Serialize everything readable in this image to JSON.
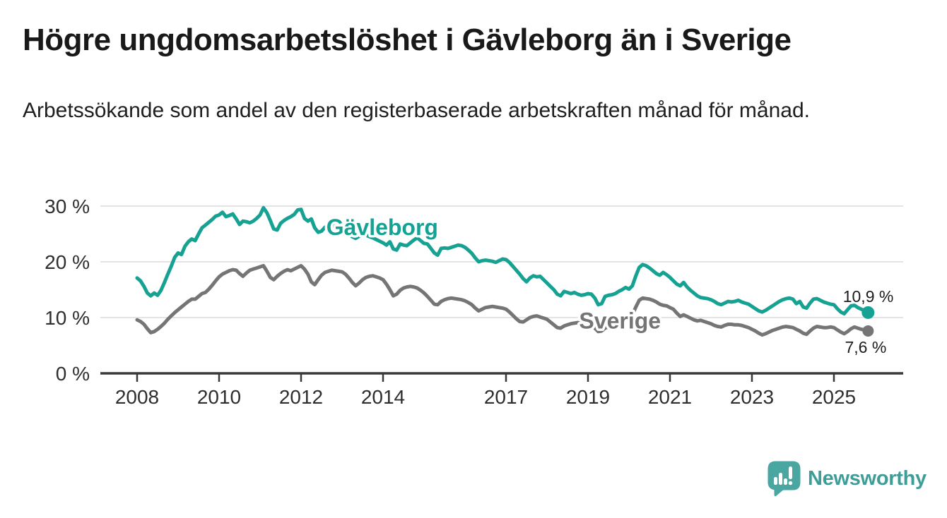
{
  "header": {
    "title": "Högre ungdomsarbetslöshet i Gävleborg än i Sverige",
    "subtitle": "Arbetssökande som andel av den registerbaserade arbetskraften månad för månad."
  },
  "footer": {
    "logo_text": "Newsworthy",
    "logo_bubble_color": "#4aa6a0",
    "logo_text_color": "#3f9d97"
  },
  "chart_data": {
    "type": "line",
    "title": "Högre ungdomsarbetslöshet i Gävleborg än i Sverige",
    "subtitle": "Arbetssökande som andel av den registerbaserade arbetskraften månad för månad.",
    "unit": "%",
    "grid": "horizontal",
    "legend_position": "inline-labels",
    "x_axis": {
      "start_year": 2008,
      "months_per_point": 1,
      "ticks": [
        2008,
        2010,
        2012,
        2014,
        2017,
        2019,
        2021,
        2023,
        2025
      ]
    },
    "y_axis": {
      "ylim": [
        0,
        32
      ],
      "ticks": [
        {
          "value": 0,
          "label": "0 %"
        },
        {
          "value": 10,
          "label": "10 %"
        },
        {
          "value": 20,
          "label": "20 %"
        },
        {
          "value": 30,
          "label": "30 %"
        }
      ]
    },
    "colors": {
      "grid": "#dcdcdc",
      "axis": "#383838",
      "tick_label": "#2e2e2e",
      "value_label": "#1d1d1d"
    },
    "series": [
      {
        "name": "Gävleborg",
        "color": "#16a293",
        "label_at": {
          "x": 2013.98,
          "y": 26.2
        },
        "end_value": 10.9,
        "end_value_label": "10,9 %",
        "monthly_values": [
          17.1,
          16.6,
          15.6,
          14.4,
          13.9,
          14.4,
          14.0,
          14.9,
          16.3,
          17.8,
          19.2,
          20.8,
          21.6,
          21.3,
          22.8,
          23.6,
          24.1,
          23.8,
          25.0,
          26.1,
          26.6,
          27.1,
          27.6,
          28.2,
          28.4,
          28.9,
          28.1,
          28.3,
          28.6,
          27.7,
          26.7,
          27.3,
          27.2,
          27.0,
          27.3,
          27.8,
          28.4,
          29.7,
          28.8,
          27.4,
          25.9,
          25.7,
          26.9,
          27.4,
          27.8,
          28.1,
          28.5,
          29.3,
          29.4,
          27.8,
          27.3,
          27.7,
          26.1,
          25.3,
          25.5,
          26.2,
          26.6,
          26.5,
          26.4,
          26.0,
          25.7,
          25.3,
          24.9,
          24.5,
          24.2,
          24.6,
          24.9,
          24.8,
          24.5,
          24.3,
          24.0,
          23.7,
          23.4,
          23.0,
          23.6,
          22.3,
          22.1,
          23.2,
          23.0,
          22.9,
          23.4,
          23.9,
          24.3,
          23.8,
          23.3,
          23.2,
          22.4,
          21.6,
          21.2,
          22.4,
          22.5,
          22.4,
          22.6,
          22.8,
          23.0,
          22.9,
          22.6,
          22.1,
          21.5,
          20.7,
          20.0,
          20.2,
          20.3,
          20.2,
          20.1,
          19.9,
          20.2,
          20.5,
          20.4,
          19.9,
          19.2,
          18.5,
          17.8,
          17.0,
          16.4,
          17.1,
          17.5,
          17.3,
          17.4,
          16.8,
          16.2,
          15.6,
          15.0,
          14.2,
          13.9,
          14.7,
          14.5,
          14.3,
          14.5,
          14.2,
          14.0,
          14.1,
          14.3,
          14.2,
          13.5,
          12.3,
          12.5,
          13.8,
          14.0,
          14.1,
          14.3,
          14.7,
          15.0,
          15.4,
          15.1,
          15.7,
          17.5,
          19.0,
          19.5,
          19.3,
          18.9,
          18.4,
          17.9,
          17.6,
          18.1,
          17.7,
          17.2,
          16.6,
          16.0,
          15.7,
          16.3,
          15.5,
          14.9,
          14.4,
          13.9,
          13.6,
          13.5,
          13.4,
          13.2,
          12.9,
          12.5,
          12.3,
          12.6,
          12.9,
          12.8,
          12.9,
          13.1,
          12.8,
          12.6,
          12.4,
          12.0,
          11.6,
          11.2,
          11.0,
          11.3,
          11.7,
          12.1,
          12.5,
          12.9,
          13.2,
          13.4,
          13.5,
          13.3,
          12.5,
          12.9,
          11.9,
          11.7,
          12.6,
          13.3,
          13.4,
          13.1,
          12.8,
          12.6,
          12.4,
          12.3,
          11.6,
          11.0,
          10.7,
          11.4,
          12.1,
          12.2,
          11.8,
          11.5,
          11.2,
          10.9
        ]
      },
      {
        "name": "Sverige",
        "color": "#757575",
        "label_at": {
          "x": 2019.78,
          "y": 9.4
        },
        "end_value": 7.6,
        "end_value_label": "7,6 %",
        "monthly_values": [
          9.6,
          9.3,
          8.8,
          8.0,
          7.3,
          7.5,
          7.9,
          8.4,
          9.0,
          9.7,
          10.3,
          10.9,
          11.4,
          11.9,
          12.4,
          12.9,
          13.3,
          13.3,
          13.8,
          14.3,
          14.5,
          15.1,
          15.8,
          16.6,
          17.3,
          17.8,
          18.1,
          18.4,
          18.6,
          18.5,
          17.9,
          17.4,
          18.0,
          18.5,
          18.7,
          18.9,
          19.1,
          19.3,
          18.3,
          17.2,
          16.8,
          17.4,
          17.9,
          18.3,
          18.6,
          18.4,
          18.7,
          19.0,
          19.3,
          18.7,
          17.8,
          16.4,
          15.9,
          16.8,
          17.6,
          18.1,
          18.3,
          18.5,
          18.4,
          18.3,
          18.2,
          17.8,
          17.1,
          16.3,
          15.7,
          16.2,
          16.8,
          17.2,
          17.4,
          17.5,
          17.3,
          17.1,
          16.8,
          16.0,
          15.0,
          13.9,
          14.2,
          14.9,
          15.3,
          15.5,
          15.6,
          15.5,
          15.3,
          14.9,
          14.4,
          13.8,
          13.1,
          12.4,
          12.3,
          12.9,
          13.2,
          13.4,
          13.5,
          13.4,
          13.3,
          13.2,
          13.0,
          12.7,
          12.3,
          11.7,
          11.2,
          11.5,
          11.8,
          11.9,
          12.0,
          11.9,
          11.8,
          11.7,
          11.5,
          11.0,
          10.4,
          9.8,
          9.3,
          9.2,
          9.6,
          10.0,
          10.2,
          10.3,
          10.1,
          9.9,
          9.7,
          9.2,
          8.7,
          8.2,
          8.1,
          8.5,
          8.7,
          8.9,
          9.0,
          9.1,
          9.0,
          9.2,
          9.3,
          8.9,
          8.1,
          7.5,
          7.6,
          8.1,
          8.4,
          8.6,
          8.8,
          9.0,
          9.2,
          9.6,
          10.0,
          10.5,
          11.9,
          13.1,
          13.5,
          13.4,
          13.3,
          13.1,
          12.8,
          12.4,
          12.2,
          12.1,
          11.8,
          11.5,
          10.8,
          10.2,
          10.5,
          10.2,
          9.9,
          9.6,
          9.4,
          9.5,
          9.3,
          9.1,
          8.9,
          8.6,
          8.4,
          8.3,
          8.6,
          8.8,
          8.8,
          8.7,
          8.7,
          8.6,
          8.4,
          8.2,
          7.9,
          7.6,
          7.2,
          6.9,
          7.1,
          7.4,
          7.7,
          7.9,
          8.1,
          8.3,
          8.4,
          8.3,
          8.2,
          7.9,
          7.6,
          7.2,
          7.0,
          7.6,
          8.1,
          8.4,
          8.3,
          8.2,
          8.2,
          8.3,
          8.2,
          7.8,
          7.4,
          7.1,
          7.5,
          8.0,
          8.3,
          8.1,
          7.9,
          7.8,
          7.6
        ]
      }
    ]
  }
}
